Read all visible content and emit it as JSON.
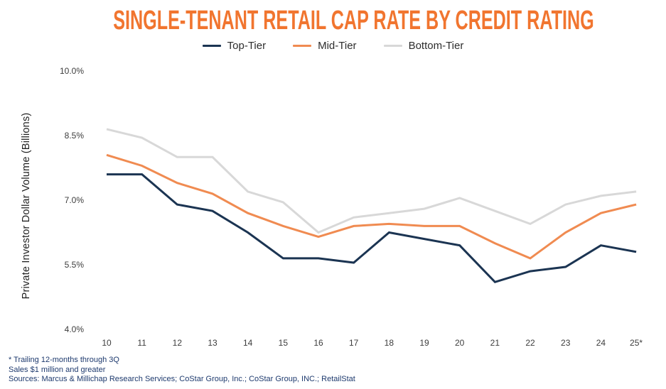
{
  "title": "SINGLE-TENANT RETAIL CAP RATE BY CREDIT RATING",
  "title_color": "#F1752F",
  "legend": [
    {
      "label": "Top-Tier",
      "color": "#1B3452"
    },
    {
      "label": "Mid-Tier",
      "color": "#F08B51"
    },
    {
      "label": "Bottom-Tier",
      "color": "#D8D8D8"
    }
  ],
  "y_axis": {
    "title": "Private Investor Dollar Volume (Billions)",
    "ticks": [
      {
        "label": "10.0%",
        "value": 10.0
      },
      {
        "label": "8.5%",
        "value": 8.5
      },
      {
        "label": "7.0%",
        "value": 7.0
      },
      {
        "label": "5.5%",
        "value": 5.5
      },
      {
        "label": "4.0%",
        "value": 4.0
      }
    ]
  },
  "chart_data": {
    "type": "line",
    "title": "SINGLE-TENANT RETAIL CAP RATE BY CREDIT RATING",
    "categories": [
      "10",
      "11",
      "12",
      "13",
      "14",
      "15",
      "16",
      "17",
      "18",
      "19",
      "20",
      "21",
      "22",
      "23",
      "24",
      "25*"
    ],
    "series": [
      {
        "name": "Top-Tier",
        "color": "#1B3452",
        "values": [
          7.6,
          7.6,
          6.9,
          6.75,
          6.25,
          5.65,
          5.65,
          5.55,
          6.25,
          6.1,
          5.95,
          5.1,
          5.35,
          5.45,
          5.95,
          5.8
        ]
      },
      {
        "name": "Mid-Tier",
        "color": "#F08B51",
        "values": [
          8.05,
          7.8,
          7.4,
          7.15,
          6.7,
          6.4,
          6.15,
          6.4,
          6.45,
          6.4,
          6.4,
          6.0,
          5.65,
          6.25,
          6.7,
          6.9
        ]
      },
      {
        "name": "Bottom-Tier",
        "color": "#D8D8D8",
        "values": [
          8.65,
          8.45,
          8.0,
          8.0,
          7.2,
          6.95,
          6.25,
          6.6,
          6.7,
          6.8,
          7.05,
          6.75,
          6.45,
          6.9,
          7.1,
          7.2
        ]
      }
    ],
    "xlabel": "",
    "ylabel": "Private Investor Dollar Volume (Billions)",
    "ylim": [
      4.0,
      10.0
    ],
    "yticks": [
      4.0,
      5.5,
      7.0,
      8.5,
      10.0
    ],
    "grid": false,
    "legend_position": "top"
  },
  "footnotes": [
    "* Trailing 12-months through 3Q",
    "Sales $1 million and greater",
    "Sources: Marcus & Millichap Research Services; CoStar Group, Inc.; CoStar Group, INC.; RetailStat"
  ]
}
